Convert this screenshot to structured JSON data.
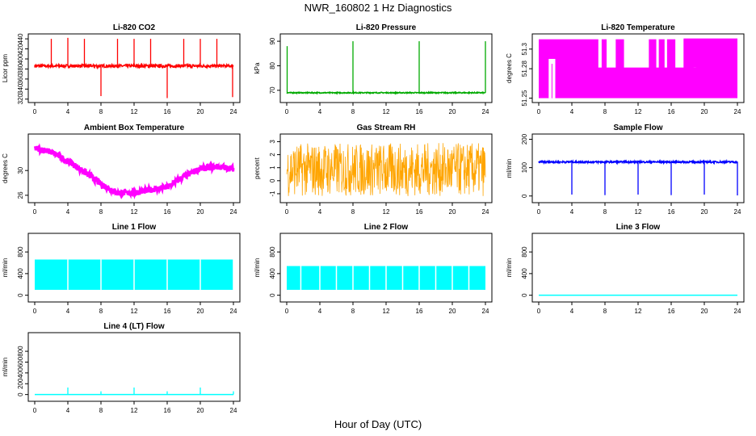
{
  "page": {
    "title": "NWR_160802  1 Hz Diagnostics",
    "x_axis_title": "Hour of Day (UTC)"
  },
  "chart_data": [
    {
      "id": "co2",
      "type": "line",
      "title": "Li-820 CO2",
      "ylabel": "Licor ppm",
      "color": "#ff0000",
      "xlim": [
        0,
        24
      ],
      "ylim": [
        318,
        445
      ],
      "xticks": [
        0,
        4,
        8,
        12,
        16,
        20,
        24
      ],
      "yticks": [
        320,
        340,
        360,
        380,
        400,
        420,
        440
      ],
      "base": 386,
      "noise": 3,
      "spikes": [
        [
          2,
          440
        ],
        [
          4,
          442
        ],
        [
          6,
          440
        ],
        [
          8,
          326
        ],
        [
          10,
          440
        ],
        [
          12,
          440
        ],
        [
          14,
          440
        ],
        [
          16,
          322
        ],
        [
          18,
          440
        ],
        [
          20,
          440
        ],
        [
          22,
          440
        ],
        [
          23.9,
          324
        ]
      ]
    },
    {
      "id": "pressure",
      "type": "line",
      "title": "Li-820 Pressure",
      "ylabel": "kPa",
      "color": "#00aa00",
      "xlim": [
        0,
        24
      ],
      "ylim": [
        66,
        92
      ],
      "xticks": [
        0,
        4,
        8,
        12,
        16,
        20,
        24
      ],
      "yticks": [
        70,
        80,
        90
      ],
      "base": 69,
      "noise": 0.2,
      "spikes": [
        [
          0.05,
          88
        ],
        [
          8,
          90
        ],
        [
          16,
          90
        ],
        [
          24,
          90
        ]
      ]
    },
    {
      "id": "temperature",
      "type": "band",
      "title": "Li-820 Temperature",
      "ylabel": "degrees C",
      "color": "#ff00ff",
      "xlim": [
        0,
        24
      ],
      "ylim": [
        51.248,
        51.313
      ],
      "xticks": [
        0,
        4,
        8,
        12,
        16,
        20,
        24
      ],
      "yticks": [
        51.25,
        51.28,
        51.3
      ],
      "ytick_labels": [
        "51.25",
        "51.28",
        "51.3"
      ],
      "band": [
        51.25,
        51.31
      ]
    },
    {
      "id": "ambient_box",
      "type": "line",
      "title": "Ambient Box Temperature",
      "ylabel": "degrees C",
      "color": "#ff00ff",
      "xlim": [
        0,
        24
      ],
      "ylim": [
        25.2,
        35.5
      ],
      "xticks": [
        0,
        4,
        8,
        12,
        16,
        20,
        24
      ],
      "yticks": [
        26,
        30
      ],
      "x": [
        0,
        2,
        4,
        6,
        8,
        10,
        12,
        14,
        16,
        18,
        20,
        22,
        24
      ],
      "values": [
        33.6,
        33.0,
        31.5,
        29.8,
        27.8,
        26.4,
        26.4,
        26.9,
        27.3,
        29.0,
        30.3,
        30.6,
        30.3
      ],
      "noise": 0.5
    },
    {
      "id": "gas_rh",
      "type": "line",
      "title": "Gas Stream RH",
      "ylabel": "percent",
      "color": "#ffa500",
      "xlim": [
        0,
        24
      ],
      "ylim": [
        -1.5,
        3.4
      ],
      "xticks": [
        0,
        4,
        8,
        12,
        16,
        20,
        24
      ],
      "yticks": [
        -1,
        0,
        1,
        2,
        3
      ],
      "base": 1.0,
      "band": [
        -1.2,
        2.9
      ]
    },
    {
      "id": "sample_flow",
      "type": "line",
      "title": "Sample Flow",
      "ylabel": "ml/min",
      "color": "#0000ff",
      "xlim": [
        0,
        24
      ],
      "ylim": [
        -15,
        210
      ],
      "xticks": [
        0,
        4,
        8,
        12,
        16,
        20,
        24
      ],
      "yticks": [
        0,
        100,
        200
      ],
      "base": 120,
      "noise": 3,
      "spikes": [
        [
          4,
          5
        ],
        [
          8,
          3
        ],
        [
          12,
          5
        ],
        [
          16,
          3
        ],
        [
          20,
          5
        ],
        [
          24,
          2
        ]
      ]
    },
    {
      "id": "line1",
      "type": "band",
      "title": "Line 1 Flow",
      "ylabel": "ml/min",
      "color": "#00ffff",
      "xlim": [
        0,
        24
      ],
      "ylim": [
        -80,
        1100
      ],
      "xticks": [
        0,
        4,
        8,
        12,
        16,
        20,
        24
      ],
      "yticks": [
        0,
        200,
        400,
        600,
        800,
        1000
      ],
      "ytick_labels": [
        "0",
        "400",
        "800"
      ],
      "ytick_values": [
        0,
        400,
        800
      ],
      "band": [
        100,
        660
      ],
      "gaps": [
        4,
        8,
        12,
        16,
        20,
        24
      ]
    },
    {
      "id": "line2",
      "type": "band",
      "title": "Line 2 Flow",
      "ylabel": "ml/min",
      "color": "#00ffff",
      "xlim": [
        0,
        24
      ],
      "ylim": [
        -80,
        1100
      ],
      "xticks": [
        0,
        4,
        8,
        12,
        16,
        20,
        24
      ],
      "ytick_labels": [
        "0",
        "400",
        "800"
      ],
      "ytick_values": [
        0,
        400,
        800
      ],
      "band": [
        100,
        540
      ],
      "gaps": [
        1.7,
        4,
        6,
        8,
        10,
        12,
        14,
        16,
        18,
        20,
        22
      ]
    },
    {
      "id": "line3",
      "type": "line",
      "title": "Line 3 Flow",
      "ylabel": "ml/min",
      "color": "#00ffff",
      "xlim": [
        0,
        24
      ],
      "ylim": [
        -80,
        1100
      ],
      "xticks": [
        0,
        4,
        8,
        12,
        16,
        20,
        24
      ],
      "ytick_labels": [
        "0",
        "400",
        "800"
      ],
      "ytick_values": [
        0,
        400,
        800
      ],
      "base": 0,
      "noise": 0
    },
    {
      "id": "line4",
      "type": "line",
      "title": "Line 4 (LT) Flow",
      "ylabel": "ml/min",
      "color": "#00ffff",
      "xlim": [
        0,
        24
      ],
      "ylim": [
        -80,
        1100
      ],
      "xticks": [
        0,
        4,
        8,
        12,
        16,
        20,
        24
      ],
      "ytick_labels": [
        "0",
        "200",
        "400",
        "600",
        "800"
      ],
      "ytick_values": [
        0,
        200,
        400,
        600,
        800
      ],
      "base": 0,
      "noise": 0,
      "spikes": [
        [
          4,
          130
        ],
        [
          8,
          60
        ],
        [
          12,
          130
        ],
        [
          16,
          60
        ],
        [
          20,
          130
        ],
        [
          24,
          60
        ]
      ]
    }
  ]
}
